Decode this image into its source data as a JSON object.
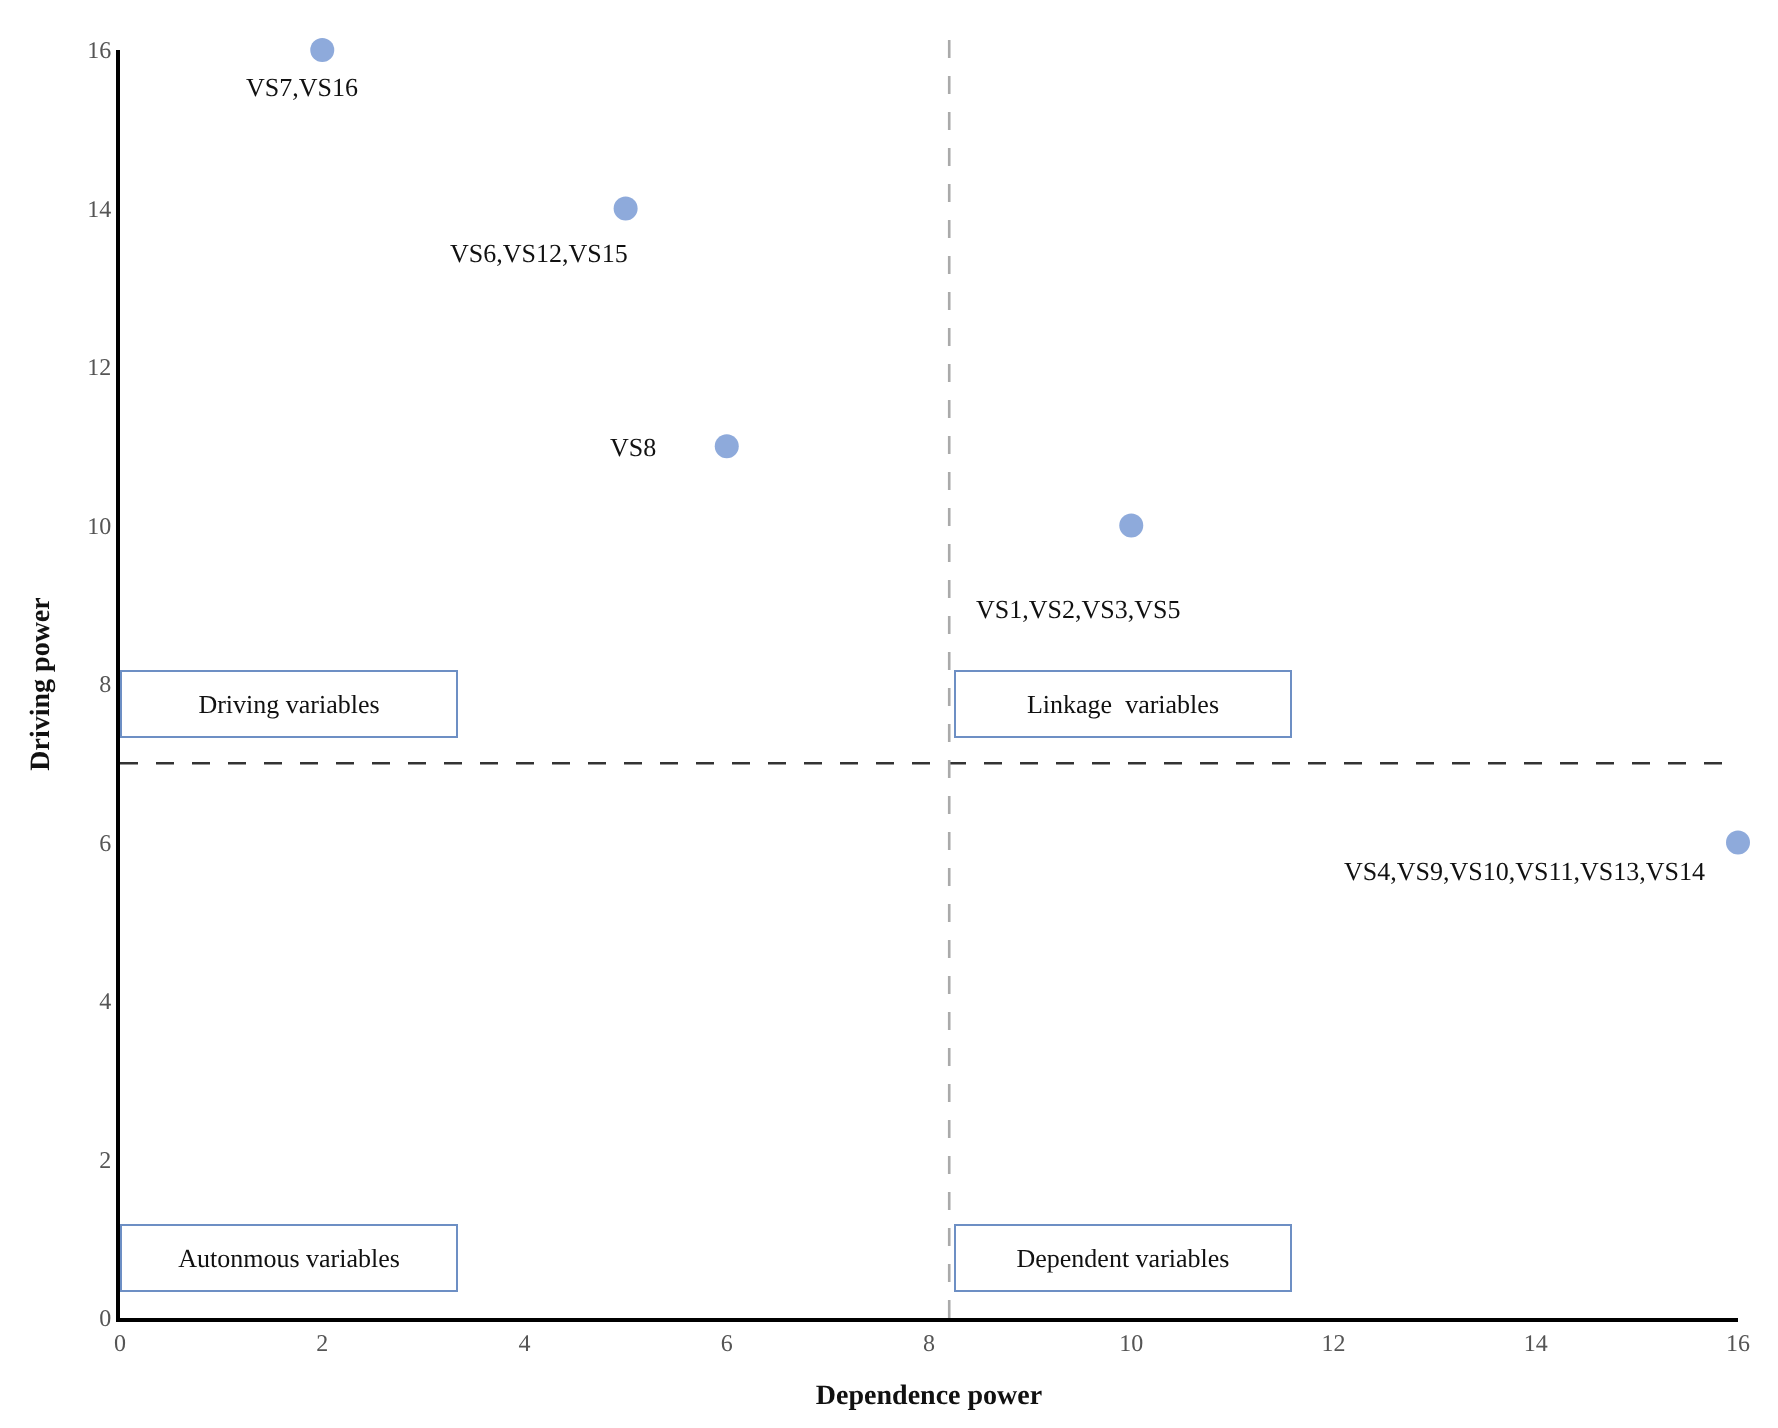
{
  "chart_data": {
    "type": "scatter",
    "xlabel": "Dependence power",
    "ylabel": "Driving power",
    "x": [
      2,
      5,
      6,
      10,
      16
    ],
    "series": [
      {
        "color": "#8eaadb",
        "values": [
          16,
          14,
          11,
          10,
          6
        ]
      }
    ],
    "marker": "circle",
    "xlim": [
      0,
      16
    ],
    "ylim": [
      0,
      16
    ],
    "xticks": [
      0,
      2,
      4,
      6,
      8,
      10,
      12,
      14,
      16
    ],
    "yticks": [
      0,
      2,
      4,
      6,
      8,
      10,
      12,
      14,
      16
    ],
    "ref_lines": [
      {
        "axis": "y",
        "value": 7,
        "color": "#333333",
        "line_style": "dashed"
      },
      {
        "axis": "x",
        "value": 8.2,
        "color": "#aaaaaa",
        "line_style": "dashed"
      }
    ],
    "annotations": [
      {
        "text": "VS7,VS16",
        "x": 2,
        "y": 16
      },
      {
        "text": "VS6,VS12,VS15",
        "x": 5,
        "y": 14
      },
      {
        "text": "VS8",
        "x": 6,
        "y": 11
      },
      {
        "text": "VS1,VS2,VS3,VS5",
        "x": 10,
        "y": 10
      },
      {
        "text": "VS4,VS9,VS10,VS11,VS13,VS14",
        "x": 16,
        "y": 6
      },
      "Driving variables",
      "Linkage  variables",
      "Autonmous variables",
      "Dependent variables"
    ]
  }
}
